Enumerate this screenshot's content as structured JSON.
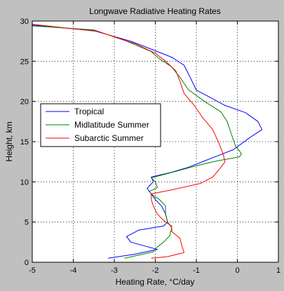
{
  "chart_data": {
    "type": "line",
    "title": "Longwave Radiative Heating Rates",
    "xlabel": "Heating Rate, °C/day",
    "ylabel": "Height, km",
    "xlim": [
      -5,
      1
    ],
    "ylim": [
      0,
      30
    ],
    "x_ticks": [
      -5,
      -4,
      -3,
      -2,
      -1,
      0,
      1
    ],
    "y_ticks": [
      0,
      5,
      10,
      15,
      20,
      25,
      30
    ],
    "grid": true,
    "grid_style": "dotted",
    "legend_position": "middle-left",
    "plot_background": "#ffffff",
    "figure_background": "#c0c0c0",
    "series": [
      {
        "name": "Tropical",
        "color": "#0000ff",
        "points": [
          [
            -3.15,
            0.5
          ],
          [
            -2.5,
            1.0
          ],
          [
            -1.95,
            1.6
          ],
          [
            -2.6,
            2.5
          ],
          [
            -2.7,
            3.2
          ],
          [
            -2.55,
            3.6
          ],
          [
            -2.4,
            4.0
          ],
          [
            -1.8,
            4.5
          ],
          [
            -1.7,
            5.0
          ],
          [
            -1.75,
            6.0
          ],
          [
            -1.85,
            7.0
          ],
          [
            -2.0,
            7.8
          ],
          [
            -2.1,
            8.5
          ],
          [
            -2.2,
            9.2
          ],
          [
            -2.05,
            10.0
          ],
          [
            -2.1,
            10.6
          ],
          [
            -1.6,
            11.2
          ],
          [
            -1.2,
            11.8
          ],
          [
            -0.8,
            12.6
          ],
          [
            -0.4,
            13.4
          ],
          [
            -0.1,
            14.0
          ],
          [
            0.3,
            15.5
          ],
          [
            0.6,
            16.5
          ],
          [
            0.5,
            17.5
          ],
          [
            0.2,
            18.6
          ],
          [
            -0.3,
            19.5
          ],
          [
            -0.7,
            20.6
          ],
          [
            -1.0,
            21.4
          ],
          [
            -1.15,
            23.0
          ],
          [
            -1.3,
            24.5
          ],
          [
            -1.6,
            25.5
          ],
          [
            -2.0,
            26.3
          ],
          [
            -2.6,
            27.5
          ],
          [
            -3.5,
            28.8
          ],
          [
            -5.0,
            29.5
          ]
        ]
      },
      {
        "name": "Midlatitude Summer",
        "color": "#008000",
        "points": [
          [
            -2.75,
            0.5
          ],
          [
            -2.4,
            0.9
          ],
          [
            -2.05,
            1.3
          ],
          [
            -2.0,
            1.7
          ],
          [
            -1.8,
            2.5
          ],
          [
            -1.65,
            3.3
          ],
          [
            -1.6,
            4.3
          ],
          [
            -1.7,
            5.0
          ],
          [
            -1.75,
            6.0
          ],
          [
            -1.75,
            7.0
          ],
          [
            -1.9,
            7.8
          ],
          [
            -2.05,
            8.3
          ],
          [
            -2.15,
            8.8
          ],
          [
            -1.95,
            9.3
          ],
          [
            -2.0,
            10.0
          ],
          [
            -2.1,
            10.5
          ],
          [
            -1.5,
            11.3
          ],
          [
            -1.0,
            12.0
          ],
          [
            -0.5,
            12.6
          ],
          [
            0.05,
            13.1
          ],
          [
            0.1,
            13.5
          ],
          [
            -0.05,
            14.5
          ],
          [
            -0.15,
            16.0
          ],
          [
            -0.25,
            17.5
          ],
          [
            -0.4,
            18.7
          ],
          [
            -0.8,
            20.0
          ],
          [
            -1.2,
            21.5
          ],
          [
            -1.4,
            23.0
          ],
          [
            -1.6,
            24.3
          ],
          [
            -1.9,
            25.3
          ],
          [
            -2.1,
            26.2
          ],
          [
            -2.7,
            27.5
          ],
          [
            -3.5,
            28.9
          ],
          [
            -5.0,
            29.4
          ]
        ]
      },
      {
        "name": "Subarctic Summer",
        "color": "#ff0000",
        "points": [
          [
            -2.1,
            0.5
          ],
          [
            -1.7,
            0.7
          ],
          [
            -1.3,
            1.2
          ],
          [
            -1.35,
            2.0
          ],
          [
            -1.4,
            3.0
          ],
          [
            -1.6,
            3.8
          ],
          [
            -1.6,
            4.5
          ],
          [
            -1.8,
            5.2
          ],
          [
            -1.95,
            6.0
          ],
          [
            -2.05,
            7.0
          ],
          [
            -2.1,
            7.8
          ],
          [
            -2.1,
            8.5
          ],
          [
            -1.6,
            9.0
          ],
          [
            -0.9,
            9.8
          ],
          [
            -0.6,
            10.6
          ],
          [
            -0.45,
            11.5
          ],
          [
            -0.3,
            12.5
          ],
          [
            -0.35,
            13.5
          ],
          [
            -0.45,
            14.8
          ],
          [
            -0.6,
            16.5
          ],
          [
            -0.85,
            18.0
          ],
          [
            -1.05,
            19.5
          ],
          [
            -1.3,
            21.0
          ],
          [
            -1.4,
            22.5
          ],
          [
            -1.5,
            23.8
          ],
          [
            -1.75,
            25.0
          ],
          [
            -2.0,
            26.0
          ],
          [
            -2.5,
            27.2
          ],
          [
            -3.4,
            28.7
          ],
          [
            -5.0,
            29.6
          ]
        ]
      }
    ]
  }
}
